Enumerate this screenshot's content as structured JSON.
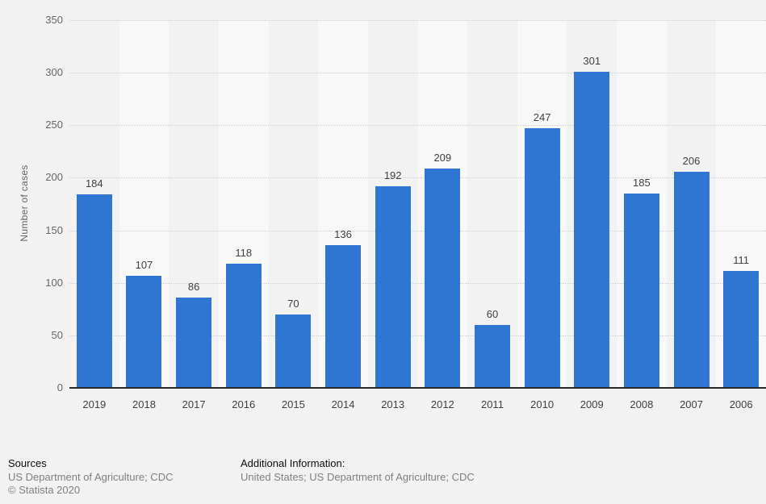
{
  "chart_data": {
    "type": "bar",
    "categories": [
      "2019",
      "2018",
      "2017",
      "2016",
      "2015",
      "2014",
      "2013",
      "2012",
      "2011",
      "2010",
      "2009",
      "2008",
      "2007",
      "2006"
    ],
    "values": [
      184,
      107,
      86,
      118,
      70,
      136,
      192,
      209,
      60,
      247,
      301,
      185,
      206,
      111
    ],
    "title": "",
    "xlabel": "",
    "ylabel": "Number of cases",
    "ylim": [
      0,
      350
    ],
    "yticks": [
      0,
      50,
      100,
      150,
      200,
      250,
      300,
      350
    ],
    "grid": "horizontal-dotted",
    "legend": "none",
    "colors": {
      "bar": "#2e76d2",
      "background": "#f2f2f2",
      "plot_stripe_light": "#f8f8f8",
      "axis_line": "#262626",
      "gridline": "#cccccc",
      "tick_label": "#666666",
      "value_label": "#404040",
      "category_label": "#404040"
    }
  },
  "footer": {
    "sources_title": "Sources",
    "sources_line": "US Department of Agriculture; CDC",
    "copyright": "© Statista 2020",
    "additional_title": "Additional Information:",
    "additional_line": "United States; US Department of Agriculture; CDC"
  }
}
